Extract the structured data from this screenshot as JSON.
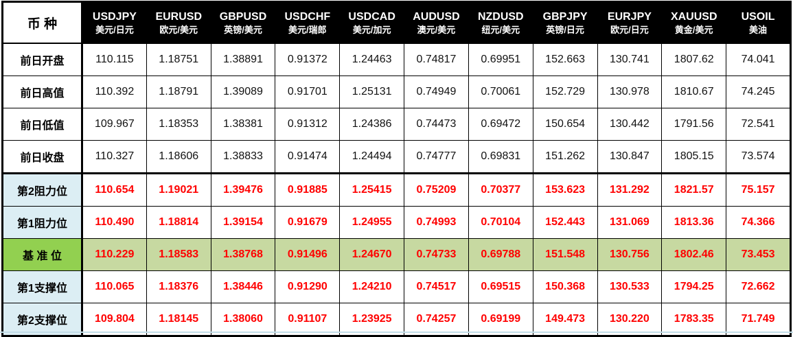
{
  "table_title": "forex-daily-pivot-table",
  "corner_label": "币 种",
  "colors": {
    "header_bg": "#000000",
    "header_fg": "#ffffff",
    "label_blue": "#dceef4",
    "pivot_green": "#92d050",
    "pivot_row_bg": "#c7d9a1",
    "value_red": "#ff0000",
    "grid": "#000000"
  },
  "chart_data": {
    "type": "table",
    "columns": [
      {
        "code": "USDJPY",
        "pair": "美元/日元"
      },
      {
        "code": "EURUSD",
        "pair": "欧元/美元"
      },
      {
        "code": "GBPUSD",
        "pair": "英镑/美元"
      },
      {
        "code": "USDCHF",
        "pair": "美元/瑞郎"
      },
      {
        "code": "USDCAD",
        "pair": "美元/加元"
      },
      {
        "code": "AUDUSD",
        "pair": "澳元/美元"
      },
      {
        "code": "NZDUSD",
        "pair": "纽元/美元"
      },
      {
        "code": "GBPJPY",
        "pair": "英镑/日元"
      },
      {
        "code": "EURJPY",
        "pair": "欧元/日元"
      },
      {
        "code": "XAUUSD",
        "pair": "黄金/美元"
      },
      {
        "code": "USOIL",
        "pair": "美油"
      }
    ],
    "rows": [
      {
        "label": "前日开盘",
        "style": "prev",
        "thick_top": false,
        "values": [
          "110.115",
          "1.18751",
          "1.38891",
          "0.91372",
          "1.24463",
          "0.74817",
          "0.69951",
          "152.663",
          "130.741",
          "1807.62",
          "74.041"
        ]
      },
      {
        "label": "前日高值",
        "style": "prev",
        "thick_top": false,
        "values": [
          "110.392",
          "1.18791",
          "1.39089",
          "0.91701",
          "1.25131",
          "0.74949",
          "0.70061",
          "152.729",
          "130.978",
          "1810.67",
          "74.245"
        ]
      },
      {
        "label": "前日低值",
        "style": "prev",
        "thick_top": false,
        "values": [
          "109.967",
          "1.18353",
          "1.38381",
          "0.91312",
          "1.24386",
          "0.74473",
          "0.69472",
          "150.654",
          "130.442",
          "1791.56",
          "72.541"
        ]
      },
      {
        "label": "前日收盘",
        "style": "prev",
        "thick_top": false,
        "values": [
          "110.327",
          "1.18606",
          "1.38833",
          "0.91474",
          "1.24494",
          "0.74777",
          "0.69831",
          "151.262",
          "130.847",
          "1805.15",
          "73.574"
        ]
      },
      {
        "label": "第2阻力位",
        "style": "level",
        "thick_top": true,
        "values": [
          "110.654",
          "1.19021",
          "1.39476",
          "0.91885",
          "1.25415",
          "0.75209",
          "0.70377",
          "153.623",
          "131.292",
          "1821.57",
          "75.157"
        ]
      },
      {
        "label": "第1阻力位",
        "style": "level",
        "thick_top": false,
        "values": [
          "110.490",
          "1.18814",
          "1.39154",
          "0.91679",
          "1.24955",
          "0.74993",
          "0.70104",
          "152.443",
          "131.069",
          "1813.36",
          "74.366"
        ]
      },
      {
        "label": "基 准 位",
        "style": "pivot",
        "thick_top": false,
        "values": [
          "110.229",
          "1.18583",
          "1.38768",
          "0.91496",
          "1.24670",
          "0.74733",
          "0.69788",
          "151.548",
          "130.756",
          "1802.46",
          "73.453"
        ]
      },
      {
        "label": "第1支撑位",
        "style": "level",
        "thick_top": false,
        "values": [
          "110.065",
          "1.18376",
          "1.38446",
          "0.91290",
          "1.24210",
          "0.74517",
          "0.69515",
          "150.368",
          "130.533",
          "1794.25",
          "72.662"
        ]
      },
      {
        "label": "第2支撑位",
        "style": "level",
        "thick_top": false,
        "values": [
          "109.804",
          "1.18145",
          "1.38060",
          "0.91107",
          "1.23925",
          "0.74257",
          "0.69199",
          "149.473",
          "130.220",
          "1783.35",
          "71.749"
        ]
      }
    ]
  }
}
